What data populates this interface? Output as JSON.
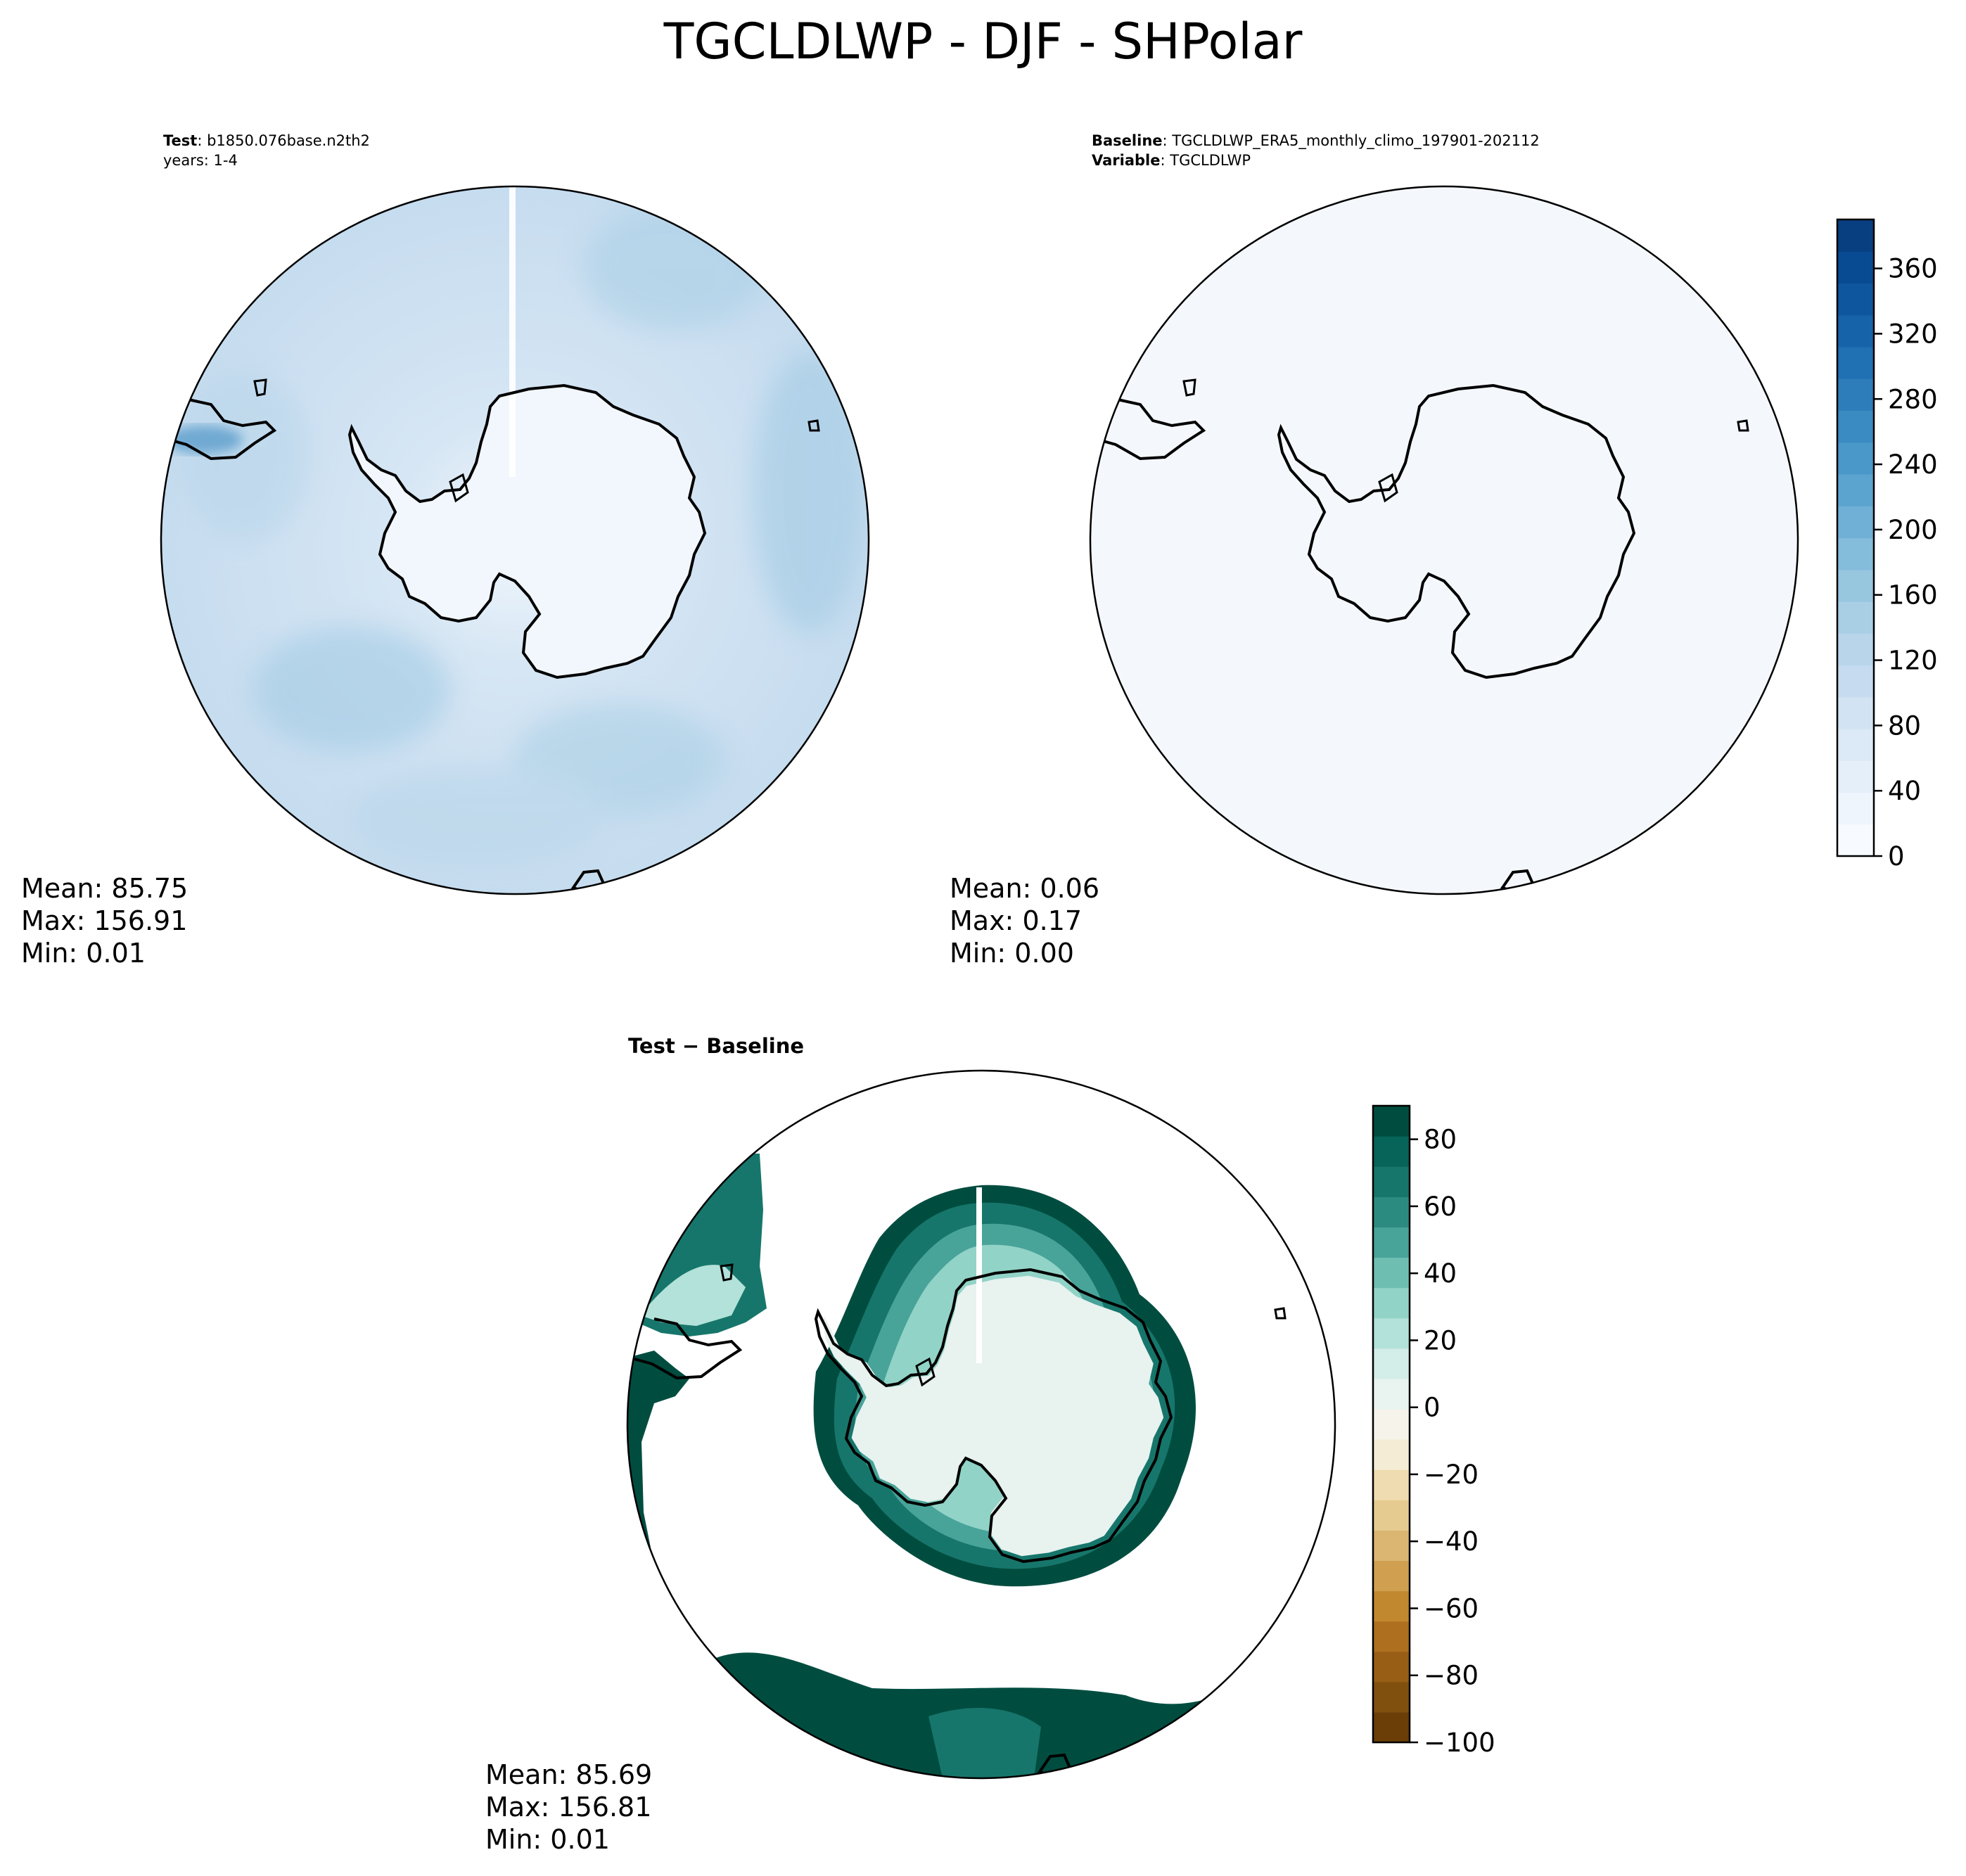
{
  "figure": {
    "title": "TGCLDLWP - DJF - SHPolar"
  },
  "panels": {
    "test": {
      "label_bold": "Test",
      "label_value": ": b1850.076base.n2th2",
      "years": "years: 1-4",
      "stats": {
        "mean": "Mean: 85.75",
        "max": "Max: 156.91",
        "min": "Min:  0.01"
      }
    },
    "baseline": {
      "label_bold": "Baseline",
      "label_value": ": TGCLDLWP_ERA5_monthly_climo_197901-202112",
      "variable_bold": "Variable",
      "variable_value": ": TGCLDLWP",
      "stats": {
        "mean": "Mean:  0.06",
        "max": "Max:  0.17",
        "min": "Min:  0.00"
      }
    },
    "difference": {
      "title": "Test − Baseline",
      "stats": {
        "mean": "Mean: 85.69",
        "max": "Max: 156.81",
        "min": "Min:  0.01"
      }
    }
  },
  "chart_data": [
    {
      "type": "heatmap",
      "panel": "test",
      "projection": "south polar stereographic",
      "summary": {
        "mean": 85.75,
        "max": 156.91,
        "min": 0.01
      },
      "colormap": "Blues",
      "colorbar": {
        "min": 0,
        "max": 390,
        "ticks": [
          0,
          40,
          80,
          120,
          160,
          200,
          240,
          280,
          320,
          360
        ]
      }
    },
    {
      "type": "heatmap",
      "panel": "baseline",
      "projection": "south polar stereographic",
      "summary": {
        "mean": 0.06,
        "max": 0.17,
        "min": 0.0
      },
      "colormap": "Blues",
      "colorbar": {
        "min": 0,
        "max": 390,
        "ticks": [
          0,
          40,
          80,
          120,
          160,
          200,
          240,
          280,
          320,
          360
        ]
      }
    },
    {
      "type": "heatmap",
      "panel": "difference",
      "projection": "south polar stereographic",
      "summary": {
        "mean": 85.69,
        "max": 156.81,
        "min": 0.01
      },
      "colormap": "BrBG",
      "colorbar": {
        "min": -100,
        "max": 90,
        "ticks": [
          -100,
          -80,
          -60,
          -40,
          -20,
          0,
          20,
          40,
          60,
          80
        ]
      }
    }
  ],
  "colorbars": {
    "blues": {
      "tick_labels": [
        "0",
        "40",
        "80",
        "120",
        "160",
        "200",
        "240",
        "280",
        "320",
        "360"
      ],
      "colors": [
        "#f7fbff",
        "#eef5fc",
        "#e5eff9",
        "#dce9f6",
        "#d2e3f3",
        "#c6dbef",
        "#b8d5ea",
        "#a9cfe5",
        "#97c6df",
        "#84bcdb",
        "#70b0d6",
        "#5ca4d0",
        "#4a98c9",
        "#3a8bc2",
        "#2d7dbb",
        "#2070b4",
        "#1663aa",
        "#0e579f",
        "#084b93",
        "#083f80"
      ]
    },
    "brbg": {
      "tick_labels": [
        "−100",
        "−80",
        "−60",
        "−40",
        "−20",
        "0",
        "20",
        "40",
        "60",
        "80"
      ],
      "colors": [
        "#6b3e08",
        "#80500f",
        "#985e15",
        "#ae701f",
        "#c2882f",
        "#d0a050",
        "#dbb672",
        "#e6cb90",
        "#efdcb0",
        "#f4ecd4",
        "#f5f3ea",
        "#e9f3f0",
        "#d3ede8",
        "#b2e2d9",
        "#92d3c7",
        "#6ebfb2",
        "#48a399",
        "#2c8b81",
        "#17766b",
        "#076458",
        "#004d40"
      ]
    }
  }
}
